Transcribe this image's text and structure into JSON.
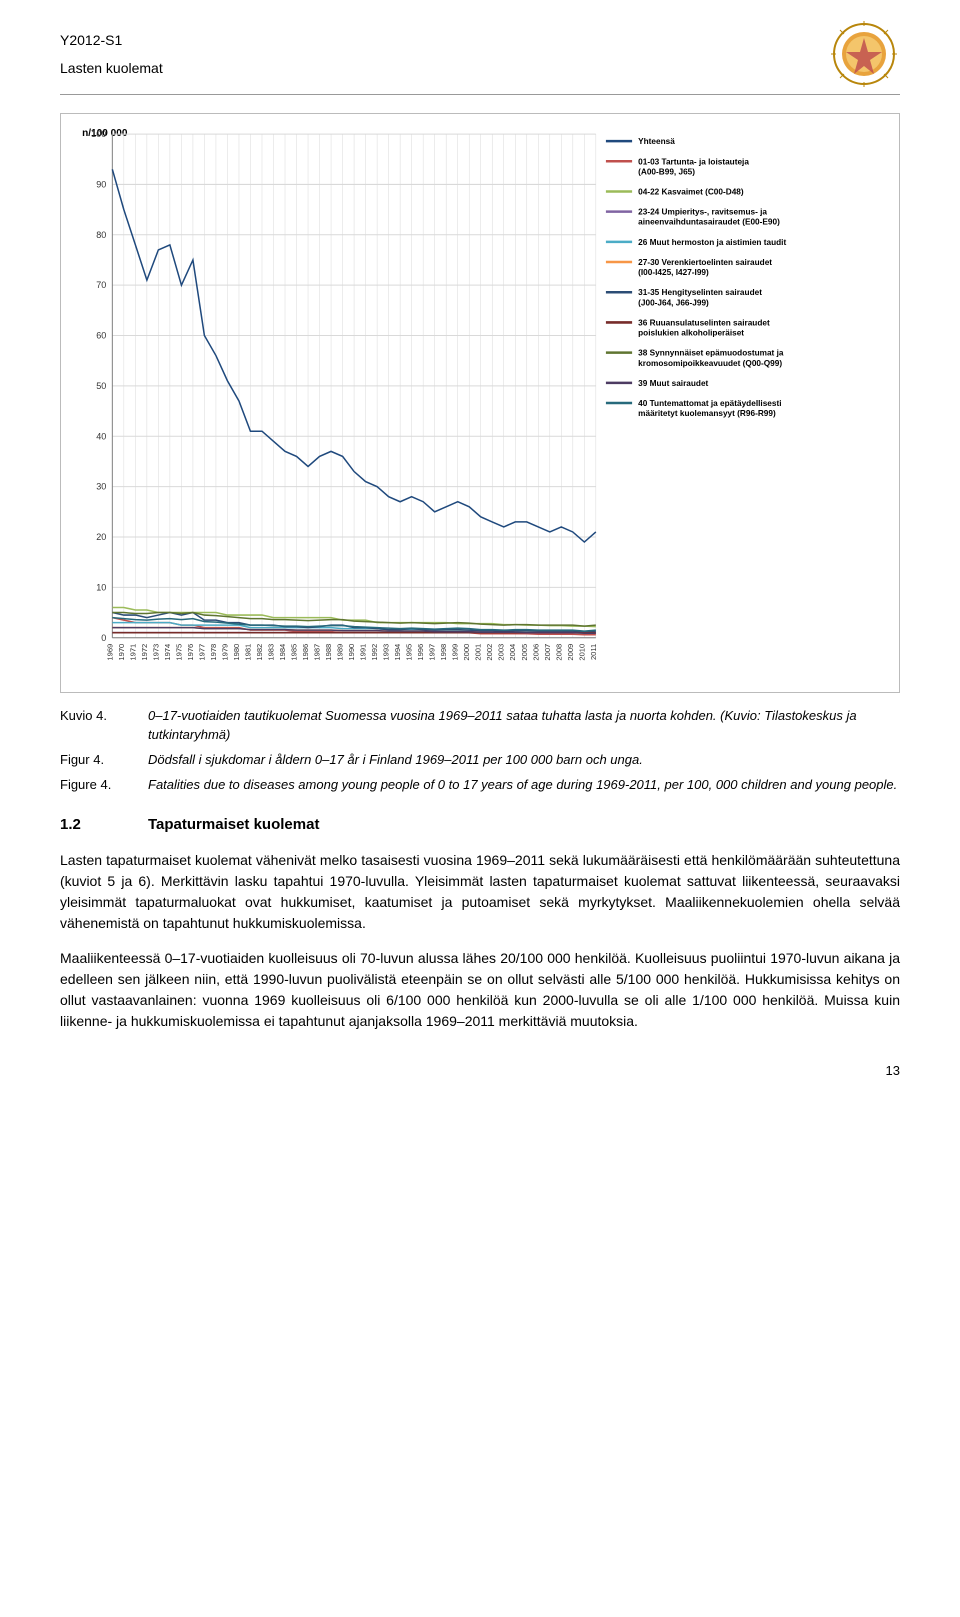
{
  "header": {
    "doc_id": "Y2012-S1",
    "subtitle": "Lasten kuolemat"
  },
  "chart": {
    "type": "line",
    "y_axis_label": "n/100 000",
    "ylim": [
      0,
      100
    ],
    "yticks": [
      0,
      10,
      20,
      30,
      40,
      50,
      60,
      70,
      80,
      90,
      100
    ],
    "years": [
      1969,
      1970,
      1971,
      1972,
      1973,
      1974,
      1975,
      1976,
      1977,
      1978,
      1979,
      1980,
      1981,
      1982,
      1983,
      1984,
      1985,
      1986,
      1987,
      1988,
      1989,
      1990,
      1991,
      1992,
      1993,
      1994,
      1995,
      1996,
      1997,
      1998,
      1999,
      2000,
      2001,
      2002,
      2003,
      2004,
      2005,
      2006,
      2007,
      2008,
      2009,
      2010,
      2011
    ],
    "background_color": "#ffffff",
    "grid_color": "#d9d9d9",
    "axis_color": "#808080",
    "tick_fontsize": 7,
    "line_width": 1.5,
    "legend": [
      {
        "label": "Yhteensä",
        "color": "#1f497d"
      },
      {
        "label": "01-03 Tartunta- ja loistauteja (A00-B99, J65)",
        "color": "#c0504d"
      },
      {
        "label": "04-22 Kasvaimet (C00-D48)",
        "color": "#9bbb59"
      },
      {
        "label": "23-24 Umpieritys-, ravitsemus- ja aineenvaihduntasairaudet (E00-E90)",
        "color": "#8064a2"
      },
      {
        "label": "26 Muut hermoston ja aistimien taudit",
        "color": "#4bacc6"
      },
      {
        "label": "27-30 Verenkiertoelinten sairaudet (I00-I425, I427-I99)",
        "color": "#f79646"
      },
      {
        "label": "31-35 Hengityselinten sairaudet (J00-J64, J66-J99)",
        "color": "#2c4d75"
      },
      {
        "label": "36 Ruuansulatuselinten sairaudet poislukien alkoholiperäiset",
        "color": "#772c2a"
      },
      {
        "label": "38 Synnynnäiset epämuodostumat ja kromosomipoikkeavuudet (Q00-Q99)",
        "color": "#5f7530"
      },
      {
        "label": "39 Muut sairaudet",
        "color": "#4d3b62"
      },
      {
        "label": "40 Tuntemattomat ja epätäydellisesti määritetyt kuolemansyyt (R96-R99)",
        "color": "#276a7c"
      }
    ],
    "series": {
      "total": {
        "color": "#1f497d",
        "values": [
          93,
          85,
          78,
          71,
          77,
          78,
          70,
          75,
          60,
          56,
          51,
          47,
          41,
          41,
          39,
          37,
          36,
          34,
          36,
          37,
          36,
          33,
          31,
          30,
          28,
          27,
          28,
          27,
          25,
          26,
          27,
          26,
          24,
          23,
          22,
          23,
          23,
          22,
          21,
          22,
          21,
          19,
          21
        ]
      },
      "s01": {
        "color": "#c0504d",
        "values": [
          4,
          3.5,
          3,
          3,
          3,
          3,
          2.5,
          2.5,
          2,
          2,
          2,
          2,
          1.5,
          1.5,
          1.5,
          1.5,
          1.2,
          1.2,
          1.2,
          1.2,
          1,
          1,
          1,
          1,
          1,
          1,
          1,
          1,
          1,
          1,
          1,
          1,
          0.8,
          0.8,
          0.8,
          0.8,
          0.8,
          0.7,
          0.7,
          0.7,
          0.7,
          0.6,
          0.6
        ]
      },
      "s04": {
        "color": "#9bbb59",
        "values": [
          6,
          6,
          5.5,
          5.5,
          5,
          5,
          5,
          5,
          5,
          5,
          4.5,
          4.5,
          4.5,
          4.5,
          4,
          4,
          4,
          4,
          4,
          4,
          3.5,
          3.5,
          3.5,
          3,
          3,
          3,
          3,
          3,
          3,
          3,
          2.8,
          2.8,
          2.8,
          2.8,
          2.6,
          2.6,
          2.5,
          2.5,
          2.4,
          2.4,
          2.3,
          2.3,
          2.2
        ]
      },
      "s23": {
        "color": "#8064a2",
        "values": [
          1,
          1,
          1,
          1,
          1,
          1,
          1,
          1,
          1,
          1,
          1,
          1,
          1,
          1,
          1,
          1,
          1,
          1,
          1,
          1,
          1,
          1,
          1,
          1,
          1,
          1,
          1,
          1,
          1,
          1,
          1,
          1,
          1,
          1,
          1,
          1,
          1,
          1,
          1,
          1,
          1,
          1,
          1
        ]
      },
      "s26": {
        "color": "#4bacc6",
        "values": [
          3,
          3,
          3,
          3,
          3,
          3,
          2.5,
          2.5,
          2.5,
          2.5,
          2.5,
          2.5,
          2,
          2,
          2,
          2,
          2,
          2,
          2,
          2,
          1.8,
          1.8,
          1.8,
          1.8,
          1.6,
          1.6,
          1.6,
          1.6,
          1.5,
          1.5,
          1.5,
          1.5,
          1.4,
          1.4,
          1.4,
          1.4,
          1.3,
          1.3,
          1.3,
          1.3,
          1.2,
          1.2,
          1.2
        ]
      },
      "s27": {
        "color": "#f79646",
        "values": [
          2,
          2,
          2,
          2,
          2,
          2,
          2,
          2,
          1.8,
          1.8,
          1.8,
          1.8,
          1.6,
          1.6,
          1.6,
          1.6,
          1.5,
          1.5,
          1.5,
          1.5,
          1.4,
          1.4,
          1.4,
          1.4,
          1.3,
          1.3,
          1.3,
          1.3,
          1.2,
          1.2,
          1.2,
          1.2,
          1.1,
          1.1,
          1.1,
          1.1,
          1,
          1,
          1,
          1,
          1,
          0.9,
          0.9
        ]
      },
      "s31": {
        "color": "#2c4d75",
        "values": [
          5,
          4.5,
          4.5,
          4,
          4.5,
          5,
          4.5,
          5,
          3.5,
          3.5,
          3,
          3,
          2.5,
          2.5,
          2.5,
          2.2,
          2.2,
          2,
          2.2,
          2.5,
          2.5,
          2,
          2,
          1.8,
          1.6,
          1.6,
          1.8,
          1.6,
          1.5,
          1.6,
          1.6,
          1.5,
          1.4,
          1.4,
          1.3,
          1.4,
          1.4,
          1.3,
          1.3,
          1.3,
          1.3,
          1.2,
          1.3
        ]
      },
      "s36": {
        "color": "#772c2a",
        "values": [
          1,
          1,
          1,
          1,
          1,
          1,
          1,
          1,
          1,
          1,
          1,
          1,
          1,
          1,
          1,
          1,
          1,
          1,
          1,
          1,
          1,
          1,
          1,
          1,
          1,
          1,
          1,
          1,
          1,
          1,
          1,
          1,
          1,
          1,
          1,
          1,
          1,
          1,
          1,
          1,
          1,
          1,
          1
        ]
      },
      "s38": {
        "color": "#5f7530",
        "values": [
          5,
          5,
          4.8,
          4.8,
          5,
          5,
          4.8,
          5,
          4.5,
          4.4,
          4.2,
          4,
          3.8,
          3.8,
          3.6,
          3.6,
          3.5,
          3.4,
          3.5,
          3.6,
          3.6,
          3.3,
          3.2,
          3.1,
          3,
          2.9,
          3,
          2.9,
          2.8,
          2.9,
          3,
          2.9,
          2.7,
          2.6,
          2.5,
          2.6,
          2.6,
          2.5,
          2.5,
          2.5,
          2.5,
          2.3,
          2.5
        ]
      },
      "s39": {
        "color": "#4d3b62",
        "values": [
          2,
          2,
          2,
          2,
          2,
          2,
          2,
          2,
          1.8,
          1.8,
          1.8,
          1.8,
          1.6,
          1.6,
          1.6,
          1.6,
          1.5,
          1.5,
          1.5,
          1.5,
          1.4,
          1.4,
          1.4,
          1.4,
          1.3,
          1.3,
          1.3,
          1.3,
          1.2,
          1.2,
          1.2,
          1.2,
          1.1,
          1.1,
          1.1,
          1.1,
          1,
          1,
          1,
          1,
          1,
          0.9,
          0.9
        ]
      },
      "s40": {
        "color": "#276a7c",
        "values": [
          4,
          3.8,
          3.6,
          3.5,
          3.7,
          3.8,
          3.6,
          3.8,
          3.2,
          3.1,
          2.9,
          2.7,
          2.5,
          2.5,
          2.4,
          2.3,
          2.3,
          2.2,
          2.3,
          2.4,
          2.4,
          2.2,
          2.1,
          2,
          1.9,
          1.8,
          1.9,
          1.8,
          1.7,
          1.8,
          1.9,
          1.8,
          1.6,
          1.6,
          1.5,
          1.6,
          1.6,
          1.5,
          1.5,
          1.5,
          1.5,
          1.3,
          1.5
        ]
      }
    }
  },
  "captions": {
    "kuvio_label": "Kuvio 4.",
    "kuvio_text": "0–17-vuotiaiden tautikuolemat Suomessa vuosina 1969–2011 sataa tuhatta lasta ja nuorta kohden. (Kuvio: Tilastokeskus ja tutkintaryhmä)",
    "figur_label": "Figur 4.",
    "figur_text": "Dödsfall i sjukdomar i åldern 0–17 år i Finland 1969–2011 per 100 000 barn och unga.",
    "figure_label": "Figure 4.",
    "figure_text": "Fatalities due to diseases among young people of 0 to 17 years of age during 1969-2011, per 100, 000 children and young people."
  },
  "section": {
    "number": "1.2",
    "title": "Tapaturmaiset kuolemat",
    "p1": "Lasten tapaturmaiset kuolemat vähenivät melko tasaisesti vuosina 1969–2011 sekä lukumääräisesti että henkilömäärään suhteutettuna (kuviot 5 ja 6). Merkittävin lasku tapahtui 1970-luvulla. Yleisimmät lasten tapaturmaiset kuolemat sattuvat liikenteessä, seuraavaksi yleisimmät tapaturmaluokat ovat hukkumiset, kaatumiset ja putoamiset sekä myrkytykset. Maaliikennekuolemien ohella selvää vähenemistä on tapahtunut hukkumiskuolemissa.",
    "p2": "Maaliikenteessä 0–17-vuotiaiden kuolleisuus oli 70-luvun alussa lähes 20/100 000 henkilöä. Kuolleisuus puoliintui 1970-luvun aikana ja edelleen sen jälkeen niin, että 1990-luvun puolivälistä eteenpäin se on ollut selvästi alle 5/100 000 henkilöä. Hukkumisissa kehitys on ollut vastaavanlainen: vuonna 1969 kuolleisuus oli 6/100 000 henkilöä kun 2000-luvulla se oli alle 1/100 000 henkilöä. Muissa kuin liikenne- ja hukkumiskuolemissa ei tapahtunut ajanjaksolla 1969–2011 merkittäviä muutoksia."
  },
  "page_number": "13"
}
